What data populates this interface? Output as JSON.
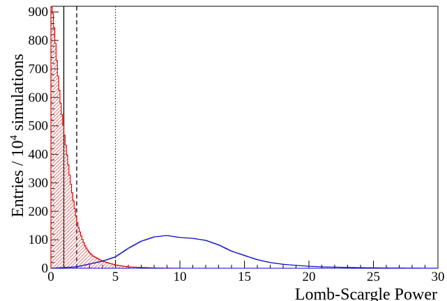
{
  "chart_data": {
    "type": "histogram",
    "xlabel": "Lomb-Scargle Power",
    "ylabel_main": "Entries / 10",
    "ylabel_sup": "4",
    "ylabel_rest": " simulations",
    "xlim": [
      0,
      30
    ],
    "ylim": [
      0,
      920
    ],
    "x_ticks": [
      0,
      5,
      10,
      15,
      20,
      25,
      30
    ],
    "y_ticks": [
      0,
      100,
      200,
      300,
      400,
      500,
      600,
      700,
      800,
      900
    ],
    "reference_lines": [
      {
        "x": 1.0,
        "style": "solid"
      },
      {
        "x": 2.0,
        "style": "dashed"
      },
      {
        "x": 5.0,
        "style": "dotted"
      }
    ],
    "series": [
      {
        "color": "#cc0000",
        "fill": "hatched",
        "points": [
          [
            0.1,
            920
          ],
          [
            0.3,
            820
          ],
          [
            0.5,
            700
          ],
          [
            0.7,
            600
          ],
          [
            0.9,
            520
          ],
          [
            1.1,
            450
          ],
          [
            1.3,
            380
          ],
          [
            1.5,
            310
          ],
          [
            1.7,
            250
          ],
          [
            1.9,
            195
          ],
          [
            2.1,
            150
          ],
          [
            2.3,
            120
          ],
          [
            2.5,
            95
          ],
          [
            2.7,
            75
          ],
          [
            2.9,
            60
          ],
          [
            3.2,
            45
          ],
          [
            3.6,
            35
          ],
          [
            4.0,
            25
          ],
          [
            4.5,
            18
          ],
          [
            5.0,
            12
          ],
          [
            5.5,
            8
          ],
          [
            6.0,
            5
          ],
          [
            7.0,
            3
          ],
          [
            8.0,
            1
          ],
          [
            10.0,
            0
          ]
        ]
      },
      {
        "color": "#0000cc",
        "fill": "none",
        "points": [
          [
            0,
            0
          ],
          [
            2,
            5
          ],
          [
            3,
            15
          ],
          [
            4,
            25
          ],
          [
            5,
            40
          ],
          [
            6,
            70
          ],
          [
            7,
            95
          ],
          [
            8,
            110
          ],
          [
            9,
            115
          ],
          [
            10,
            108
          ],
          [
            11,
            105
          ],
          [
            12,
            98
          ],
          [
            13,
            82
          ],
          [
            14,
            60
          ],
          [
            15,
            45
          ],
          [
            16,
            30
          ],
          [
            17,
            20
          ],
          [
            18,
            14
          ],
          [
            19,
            10
          ],
          [
            20,
            7
          ],
          [
            21,
            5
          ],
          [
            22,
            4
          ],
          [
            23,
            3
          ],
          [
            24,
            2
          ],
          [
            26,
            1
          ],
          [
            30,
            0
          ]
        ]
      }
    ]
  }
}
